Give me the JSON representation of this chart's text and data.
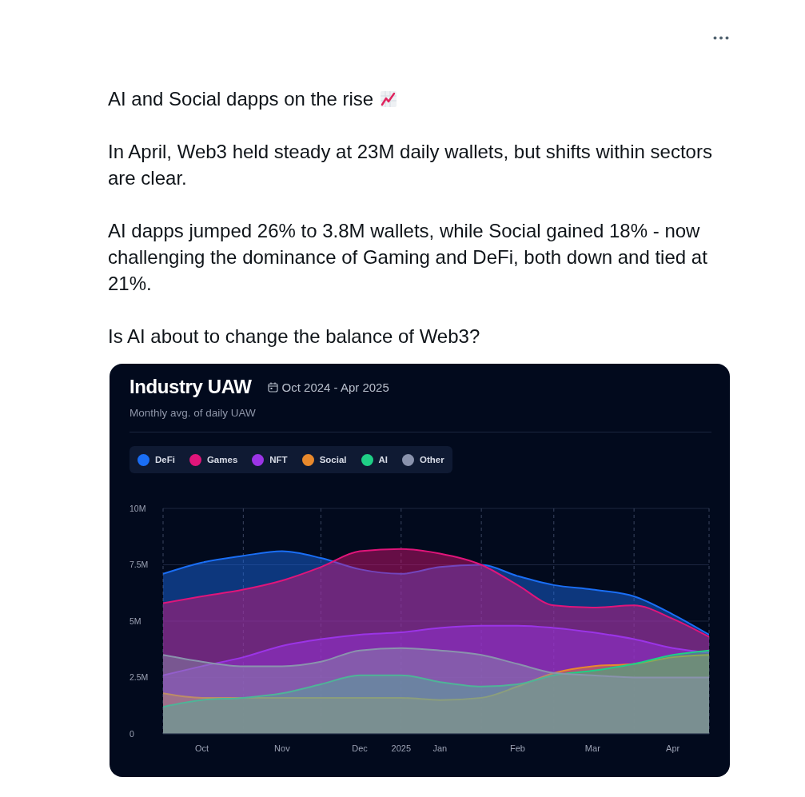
{
  "chart_data": {
    "type": "area",
    "title": "Industry UAW",
    "subtitle": "Monthly avg. of daily UAW",
    "annotations": [
      "AI and Social dapps on the rise",
      "In April, Web3 held steady at 23M daily wallets, but shifts within sectors are clear.",
      "AI dapps jumped 26% to 3.8M wallets, while Social gained 18% - now challenging the dominance of Gaming and DeFi, both down and tied at 21%.",
      "Is AI about to change the balance of Web3?",
      "Oct 2024 - Apr 2025"
    ],
    "x": [
      "2024-10-01",
      "2024-10-16",
      "2024-11-01",
      "2024-11-16",
      "2024-12-01",
      "2024-12-16",
      "2025-01-01",
      "2025-01-16",
      "2025-02-01",
      "2025-02-15",
      "2025-03-01",
      "2025-03-16",
      "2025-04-01",
      "2025-04-16",
      "2025-04-30"
    ],
    "series": [
      {
        "name": "DeFi",
        "color": "#1a6ef5",
        "values": [
          7.1,
          7.6,
          7.9,
          8.1,
          7.8,
          7.3,
          7.1,
          7.4,
          7.5,
          7.0,
          6.6,
          6.4,
          6.1,
          5.3,
          4.4
        ]
      },
      {
        "name": "Games",
        "color": "#e0157a",
        "values": [
          5.8,
          6.1,
          6.4,
          6.8,
          7.4,
          8.1,
          8.2,
          8.0,
          7.5,
          6.6,
          5.7,
          5.6,
          5.7,
          5.1,
          4.3
        ]
      },
      {
        "name": "NFT",
        "color": "#9b34e6",
        "values": [
          2.6,
          3.0,
          3.4,
          3.9,
          4.2,
          4.4,
          4.5,
          4.7,
          4.8,
          4.8,
          4.7,
          4.5,
          4.2,
          3.8,
          3.6
        ]
      },
      {
        "name": "Social",
        "color": "#e8892c",
        "values": [
          1.8,
          1.6,
          1.6,
          1.6,
          1.6,
          1.6,
          1.6,
          1.5,
          1.6,
          2.1,
          2.7,
          3.0,
          3.1,
          3.4,
          3.5
        ]
      },
      {
        "name": "AI",
        "color": "#1fcf86",
        "values": [
          1.2,
          1.5,
          1.6,
          1.8,
          2.2,
          2.6,
          2.6,
          2.3,
          2.1,
          2.2,
          2.6,
          2.8,
          3.1,
          3.5,
          3.7
        ]
      },
      {
        "name": "Other",
        "color": "#8a93ad",
        "values": [
          3.5,
          3.2,
          3.0,
          3.0,
          3.2,
          3.7,
          3.8,
          3.7,
          3.5,
          3.1,
          2.7,
          2.6,
          2.5,
          2.5,
          2.5
        ]
      }
    ],
    "xlim": [
      "2024-10-01",
      "2025-04-30"
    ],
    "xticks": [
      {
        "value": "2024-10-01",
        "label": null
      },
      {
        "value": "2024-10-16",
        "label": "Oct"
      },
      {
        "value": "2024-11-01",
        "label": null
      },
      {
        "value": "2024-11-16",
        "label": "Nov"
      },
      {
        "value": "2024-12-01",
        "label": null
      },
      {
        "value": "2024-12-16",
        "label": "Dec"
      },
      {
        "value": "2025-01-01",
        "label": "2025"
      },
      {
        "value": "2025-01-16",
        "label": "Jan"
      },
      {
        "value": "2025-02-01",
        "label": null
      },
      {
        "value": "2025-02-15",
        "label": "Feb"
      },
      {
        "value": "2025-03-01",
        "label": null
      },
      {
        "value": "2025-03-16",
        "label": "Mar"
      },
      {
        "value": "2025-04-01",
        "label": null
      },
      {
        "value": "2025-04-16",
        "label": "Apr"
      },
      {
        "value": "2025-04-30",
        "label": null
      }
    ],
    "ylim": [
      0,
      10
    ],
    "yticks": [
      0,
      {
        "value": 2.5,
        "label": "2.5M"
      },
      {
        "value": 5,
        "label": "5M"
      },
      {
        "value": 7.5,
        "label": "7.5M"
      },
      {
        "value": 10,
        "label": "10M"
      }
    ],
    "grid": true,
    "legend": "top left"
  }
}
